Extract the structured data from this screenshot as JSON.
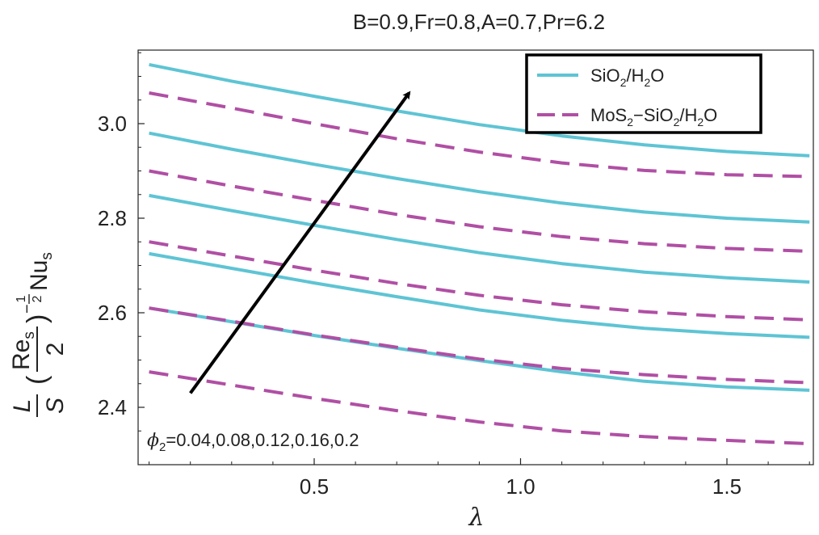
{
  "chart_data": {
    "type": "line",
    "title": "B=0.9,Fr=0.8,A=0.7,Pr=6.2",
    "xlabel": "λ",
    "ylabel": {
      "L": "L",
      "S": "S",
      "Re": "Re",
      "re_sub": "s",
      "two": "2",
      "exp_neg": "−",
      "exp_num": "1",
      "exp_den": "2",
      "Nu": "Nu",
      "nu_sub": "s",
      "lparen": "(",
      "rparen": ")"
    },
    "xlim": [
      0.1,
      1.7
    ],
    "ylim": [
      2.3,
      3.17
    ],
    "xticks": [
      0.5,
      1.0,
      1.5
    ],
    "xtick_labels": [
      "0.5",
      "1.0",
      "1.5"
    ],
    "yticks": [
      2.4,
      2.6,
      2.8,
      3.0
    ],
    "ytick_labels": [
      "2.4",
      "2.6",
      "2.8",
      "3.0"
    ],
    "x": [
      0.1,
      0.3,
      0.5,
      0.7,
      0.9,
      1.1,
      1.3,
      1.5,
      1.7
    ],
    "series": [
      {
        "name": "SiO2/H2O",
        "style": "solid",
        "color": "#5ec4d4",
        "curves": [
          {
            "phi": "0.04",
            "values": [
              2.61,
              2.581,
              2.552,
              2.525,
              2.499,
              2.475,
              2.455,
              2.443,
              2.436
            ]
          },
          {
            "phi": "0.08",
            "values": [
              2.725,
              2.694,
              2.663,
              2.634,
              2.606,
              2.584,
              2.567,
              2.556,
              2.548
            ]
          },
          {
            "phi": "0.12",
            "values": [
              2.848,
              2.816,
              2.785,
              2.755,
              2.727,
              2.704,
              2.686,
              2.674,
              2.665
            ]
          },
          {
            "phi": "0.16",
            "values": [
              2.98,
              2.946,
              2.914,
              2.884,
              2.856,
              2.832,
              2.813,
              2.8,
              2.792
            ]
          },
          {
            "phi": "0.2",
            "values": [
              3.125,
              3.09,
              3.058,
              3.027,
              2.998,
              2.974,
              2.955,
              2.941,
              2.932
            ]
          }
        ]
      },
      {
        "name": "MoS2-SiO2/H2O",
        "style": "dashed",
        "color": "#b04fa4",
        "curves": [
          {
            "phi": "0.04",
            "values": [
              2.475,
              2.447,
              2.419,
              2.393,
              2.369,
              2.35,
              2.338,
              2.33,
              2.323
            ]
          },
          {
            "phi": "0.08",
            "values": [
              2.61,
              2.582,
              2.553,
              2.527,
              2.502,
              2.482,
              2.469,
              2.459,
              2.452
            ]
          },
          {
            "phi": "0.12",
            "values": [
              2.75,
              2.72,
              2.69,
              2.662,
              2.637,
              2.617,
              2.602,
              2.592,
              2.585
            ]
          },
          {
            "phi": "0.16",
            "values": [
              2.9,
              2.868,
              2.838,
              2.808,
              2.782,
              2.761,
              2.746,
              2.736,
              2.73
            ]
          },
          {
            "phi": "0.2",
            "values": [
              3.065,
              3.033,
              3.0,
              2.968,
              2.94,
              2.917,
              2.901,
              2.892,
              2.888
            ]
          }
        ]
      }
    ],
    "legend": {
      "position": "top-right",
      "entries": [
        {
          "main": "SiO",
          "sub1": "2",
          "mid": "/H",
          "sub2": "2",
          "end": "O"
        },
        {
          "main": "MoS",
          "sub1": "2",
          "mid": "−SiO",
          "sub2": "2",
          "mid2": "/H",
          "sub3": "2",
          "end": "O"
        }
      ]
    },
    "annotation": {
      "phi_symbol": "ϕ",
      "phi_sub": "2",
      "values_text": "=0.04,0.08,0.12,0.16,0.2",
      "arrow_from": [
        0.2,
        2.43
      ],
      "arrow_to": [
        0.73,
        3.065
      ]
    }
  }
}
